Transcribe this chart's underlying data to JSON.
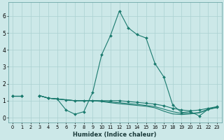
{
  "xlabel": "Humidex (Indice chaleur)",
  "x_values": [
    0,
    1,
    2,
    3,
    4,
    5,
    6,
    7,
    8,
    9,
    10,
    11,
    12,
    13,
    14,
    15,
    16,
    17,
    18,
    19,
    20,
    21,
    22,
    23
  ],
  "line1_y": [
    1.3,
    1.3,
    null,
    1.3,
    1.15,
    1.1,
    0.45,
    0.2,
    0.35,
    1.5,
    3.7,
    4.85,
    6.3,
    5.3,
    4.9,
    4.7,
    3.2,
    2.4,
    0.75,
    0.3,
    0.35,
    0.1,
    0.5,
    0.6
  ],
  "line2_y": [
    1.3,
    1.3,
    null,
    1.3,
    1.15,
    1.1,
    1.05,
    1.0,
    1.0,
    1.0,
    1.0,
    1.0,
    1.0,
    0.95,
    0.9,
    0.85,
    0.8,
    0.7,
    0.55,
    0.45,
    0.4,
    0.45,
    0.55,
    0.65
  ],
  "line3_y": [
    1.3,
    1.3,
    null,
    1.3,
    1.15,
    1.1,
    1.05,
    1.0,
    1.0,
    1.0,
    0.98,
    0.92,
    0.88,
    0.83,
    0.78,
    0.72,
    0.65,
    0.5,
    0.35,
    0.25,
    0.25,
    0.3,
    0.5,
    0.62
  ],
  "line4_y": [
    1.3,
    1.3,
    null,
    1.3,
    1.15,
    1.1,
    1.05,
    1.0,
    1.0,
    1.0,
    0.95,
    0.88,
    0.82,
    0.77,
    0.72,
    0.67,
    0.58,
    0.38,
    0.22,
    0.18,
    0.22,
    0.28,
    0.48,
    0.6
  ],
  "color": "#1a7a6e",
  "bg_color": "#cce8e8",
  "grid_color": "#aad0d0",
  "ylim": [
    -0.3,
    6.8
  ],
  "xlim": [
    -0.5,
    23.5
  ]
}
